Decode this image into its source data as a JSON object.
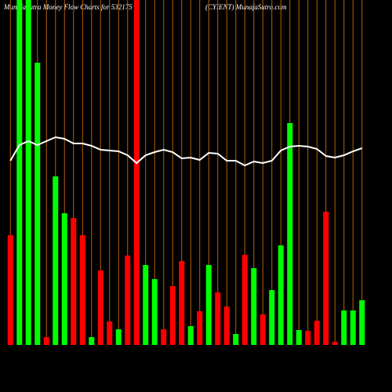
{
  "chart_data": {
    "type": "bar",
    "title": "MunafaSutra  Money Flow  Charts for 532175",
    "subtitle": "(CYIENT) MunafaSutra.com",
    "categories": [
      null,
      null,
      null,
      null,
      null,
      null,
      null,
      null,
      null,
      null,
      null,
      null,
      null,
      null,
      null,
      null,
      null,
      null,
      null,
      null,
      null,
      null,
      null,
      null,
      null,
      null,
      null,
      null,
      null,
      null,
      null,
      null,
      null,
      null,
      null,
      null,
      null,
      null,
      null,
      null
    ],
    "values": [
      140,
      440,
      440,
      360,
      10,
      215,
      168,
      162,
      140,
      10,
      95,
      30,
      20,
      114,
      440,
      102,
      84,
      20,
      75,
      107,
      24,
      43,
      102,
      67,
      49,
      14,
      115,
      98,
      39,
      70,
      127,
      283,
      19,
      18,
      31,
      170,
      4,
      44,
      44,
      57
    ],
    "colors": [
      "#ff0000",
      "#00ff00",
      "#00ff00",
      "#00ff00",
      "#ff0000",
      "#00ff00",
      "#00ff00",
      "#ff0000",
      "#ff0000",
      "#00ff00",
      "#ff0000",
      "#ff0000",
      "#00ff00",
      "#ff0000",
      "#ff0000",
      "#00ff00",
      "#00ff00",
      "#ff0000",
      "#ff0000",
      "#ff0000",
      "#00ff00",
      "#ff0000",
      "#00ff00",
      "#ff0000",
      "#ff0000",
      "#00ff00",
      "#ff0000",
      "#00ff00",
      "#ff0000",
      "#00ff00",
      "#00ff00",
      "#00ff00",
      "#00ff00",
      "#ff0000",
      "#ff0000",
      "#ff0000",
      "#ff0000",
      "#00ff00",
      "#00ff00",
      "#00ff00"
    ],
    "line": {
      "color": "#ffffff",
      "values": [
        235,
        255,
        260,
        255,
        260,
        265,
        263,
        257,
        257,
        254,
        249,
        248,
        247,
        242,
        232,
        242,
        246,
        249,
        246,
        238,
        239,
        236,
        245,
        244,
        235,
        235,
        229,
        234,
        232,
        235,
        248,
        253,
        254,
        253,
        250,
        241,
        239,
        242,
        247,
        251
      ]
    },
    "grid_color": "#b8600b",
    "ylim": [
      0,
      440
    ]
  }
}
